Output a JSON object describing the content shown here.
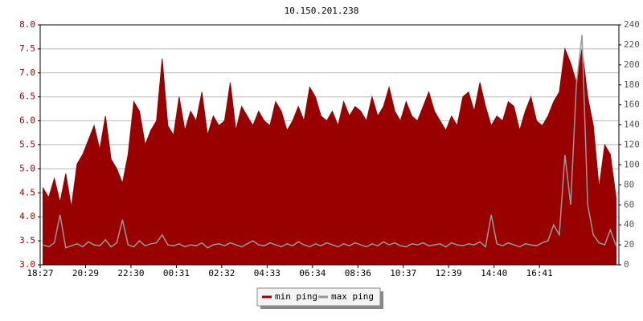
{
  "chart_data": {
    "type": "line",
    "title": "10.150.201.238",
    "categories": [
      "18:27",
      null,
      null,
      null,
      null,
      null,
      null,
      null,
      "20:29",
      null,
      null,
      null,
      null,
      null,
      null,
      null,
      "22:30",
      null,
      null,
      null,
      null,
      null,
      null,
      null,
      "00:31",
      null,
      null,
      null,
      null,
      null,
      null,
      null,
      "02:32",
      null,
      null,
      null,
      null,
      null,
      null,
      null,
      "04:33",
      null,
      null,
      null,
      null,
      null,
      null,
      null,
      "06:34",
      null,
      null,
      null,
      null,
      null,
      null,
      null,
      "08:36",
      null,
      null,
      null,
      null,
      null,
      null,
      null,
      "10:37",
      null,
      null,
      null,
      null,
      null,
      null,
      null,
      "12:39",
      null,
      null,
      null,
      null,
      null,
      null,
      null,
      "14:40",
      null,
      null,
      null,
      null,
      null,
      null,
      null,
      "16:41",
      null,
      null,
      null,
      null,
      null,
      null,
      null,
      null,
      null,
      null,
      null,
      null,
      null
    ],
    "series": [
      {
        "name": "min ping",
        "color": "#990000",
        "fill": true,
        "values": [
          4.6,
          4.4,
          4.8,
          4.3,
          4.9,
          4.2,
          5.1,
          5.3,
          5.6,
          5.9,
          5.4,
          6.1,
          5.2,
          5.0,
          4.7,
          5.3,
          6.4,
          6.2,
          5.5,
          5.8,
          6.0,
          7.3,
          5.9,
          5.7,
          6.5,
          5.8,
          6.2,
          6.0,
          6.6,
          5.7,
          6.1,
          5.9,
          6.0,
          6.8,
          5.8,
          6.3,
          6.1,
          5.9,
          6.2,
          6.0,
          5.9,
          6.4,
          6.2,
          5.8,
          6.0,
          6.3,
          6.0,
          6.7,
          6.5,
          6.1,
          6.0,
          6.2,
          5.9,
          6.4,
          6.1,
          6.3,
          6.2,
          6.0,
          6.5,
          6.1,
          6.3,
          6.7,
          6.2,
          6.0,
          6.4,
          6.1,
          6.0,
          6.3,
          6.6,
          6.2,
          6.0,
          5.8,
          6.1,
          5.9,
          6.5,
          6.6,
          6.2,
          6.8,
          6.3,
          5.9,
          6.1,
          6.0,
          6.4,
          6.3,
          5.8,
          6.2,
          6.5,
          6.0,
          5.9,
          6.1,
          6.4,
          6.6,
          7.5,
          7.2,
          6.8,
          7.5,
          6.5,
          5.9,
          4.6,
          5.5,
          5.3,
          4.4
        ]
      },
      {
        "name": "max ping",
        "color": "#999999",
        "axis": "y2",
        "values": [
          20,
          18,
          22,
          50,
          17,
          19,
          21,
          18,
          23,
          20,
          19,
          25,
          18,
          22,
          45,
          20,
          18,
          24,
          19,
          21,
          22,
          30,
          20,
          19,
          21,
          18,
          20,
          19,
          22,
          17,
          20,
          21,
          19,
          22,
          20,
          18,
          21,
          24,
          20,
          19,
          22,
          20,
          18,
          21,
          19,
          23,
          20,
          18,
          21,
          19,
          22,
          20,
          18,
          21,
          19,
          22,
          20,
          18,
          21,
          19,
          23,
          20,
          22,
          19,
          18,
          21,
          20,
          22,
          19,
          20,
          21,
          18,
          22,
          20,
          19,
          21,
          20,
          23,
          18,
          50,
          21,
          19,
          22,
          20,
          18,
          21,
          20,
          19,
          22,
          24,
          40,
          30,
          110,
          60,
          180,
          230,
          60,
          30,
          22,
          20,
          35,
          19
        ]
      }
    ],
    "ylim": [
      3,
      8
    ],
    "yticks": [
      {
        "value": 3,
        "label": "3.0"
      },
      3.5,
      {
        "value": 4,
        "label": "4.0"
      },
      4.5,
      {
        "value": 5,
        "label": "5.0"
      },
      5.5,
      {
        "value": 6,
        "label": "6.0"
      },
      6.5,
      {
        "value": 7,
        "label": "7.0"
      },
      7.5,
      {
        "value": 8,
        "label": "8.0"
      }
    ],
    "y2lim": [
      0,
      240
    ],
    "y2ticks": [
      0,
      20,
      40,
      60,
      80,
      100,
      120,
      140,
      160,
      180,
      200,
      220,
      240
    ],
    "grid": true
  }
}
